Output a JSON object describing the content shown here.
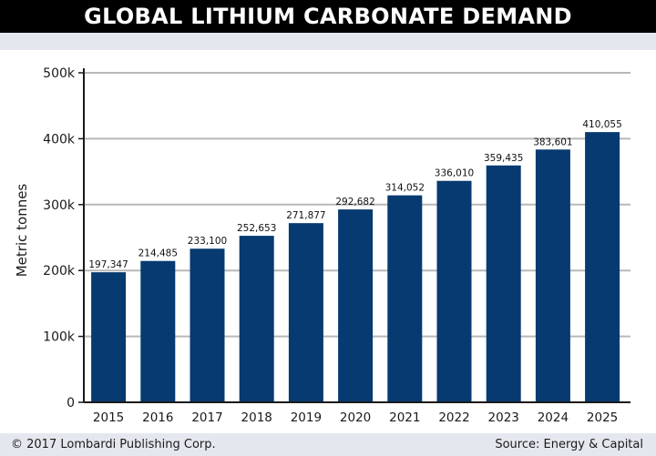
{
  "chart_data": {
    "type": "bar",
    "title": "GLOBAL LITHIUM CARBONATE DEMAND",
    "xlabel": "",
    "ylabel": "Metric tonnes",
    "categories": [
      "2015",
      "2016",
      "2017",
      "2018",
      "2019",
      "2020",
      "2021",
      "2022",
      "2023",
      "2024",
      "2025"
    ],
    "values": [
      197347,
      214485,
      233100,
      252653,
      271877,
      292682,
      314052,
      336010,
      359435,
      383601,
      410055
    ],
    "value_labels": [
      "197,347",
      "214,485",
      "233,100",
      "252,653",
      "271,877",
      "292,682",
      "314,052",
      "336,010",
      "359,435",
      "383,601",
      "410,055"
    ],
    "ylim": [
      0,
      500000
    ],
    "yticks": [
      0,
      100000,
      200000,
      300000,
      400000,
      500000
    ],
    "ytick_labels": [
      "0",
      "100k",
      "200k",
      "300k",
      "400k",
      "500k"
    ],
    "grid": true,
    "bar_color": "#063a70"
  },
  "footer": {
    "copyright": "© 2017 Lombardi Publishing Corp.",
    "source": "Source: Energy & Capital"
  }
}
